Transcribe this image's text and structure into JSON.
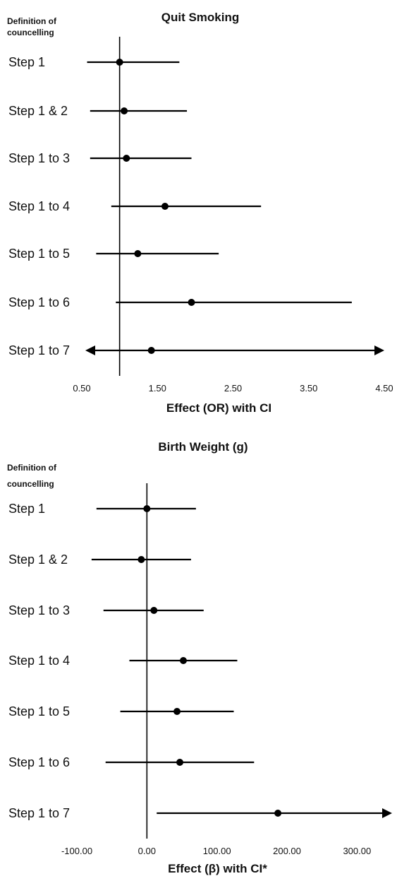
{
  "panel_header": "Definition of councelling",
  "chart_data": [
    {
      "type": "forest",
      "title": "Quit Smoking",
      "xlabel": "Effect (OR) with CI",
      "xlim": [
        0.5,
        4.5
      ],
      "xticks": [
        "0.50",
        "1.50",
        "2.50",
        "3.50",
        "4.50"
      ],
      "xtick_values": [
        0.5,
        1.5,
        2.5,
        3.5,
        4.5
      ],
      "reference": 1.0,
      "categories": [
        "Step 1",
        "Step 1 & 2",
        "Step 1 to 3",
        "Step 1 to 4",
        "Step 1 to 5",
        "Step 1 to 6",
        "Step 1 to 7"
      ],
      "estimates": [
        1.0,
        1.06,
        1.09,
        1.6,
        1.24,
        1.95,
        1.42
      ],
      "lower": [
        0.57,
        0.61,
        0.61,
        0.89,
        0.69,
        0.95,
        0.5
      ],
      "upper": [
        1.79,
        1.89,
        1.95,
        2.87,
        2.31,
        4.07,
        4.5
      ],
      "arrow_left": [
        false,
        false,
        false,
        false,
        false,
        false,
        true
      ],
      "arrow_right": [
        false,
        false,
        false,
        false,
        false,
        false,
        true
      ]
    },
    {
      "type": "forest",
      "title": "Birth Weight (g)",
      "xlabel": "Effect (β) with CI*",
      "xlim": [
        -100,
        350
      ],
      "xticks": [
        "-100.00",
        "0.00",
        "100.00",
        "200.00",
        "300.00"
      ],
      "xtick_values": [
        -100,
        0,
        100,
        200,
        300
      ],
      "reference": 0,
      "categories": [
        "Step 1",
        "Step 1 & 2",
        "Step 1 to 3",
        "Step 1 to 4",
        "Step 1 to 5",
        "Step 1 to 6",
        "Step 1 to 7"
      ],
      "estimates": [
        0,
        -8,
        10,
        52,
        43,
        47,
        187
      ],
      "lower": [
        -72,
        -79,
        -62,
        -25,
        -38,
        -59,
        14
      ],
      "upper": [
        70,
        63,
        81,
        129,
        124,
        153,
        350
      ],
      "arrow_left": [
        false,
        false,
        false,
        false,
        false,
        false,
        false
      ],
      "arrow_right": [
        false,
        false,
        false,
        false,
        false,
        false,
        true
      ]
    }
  ]
}
